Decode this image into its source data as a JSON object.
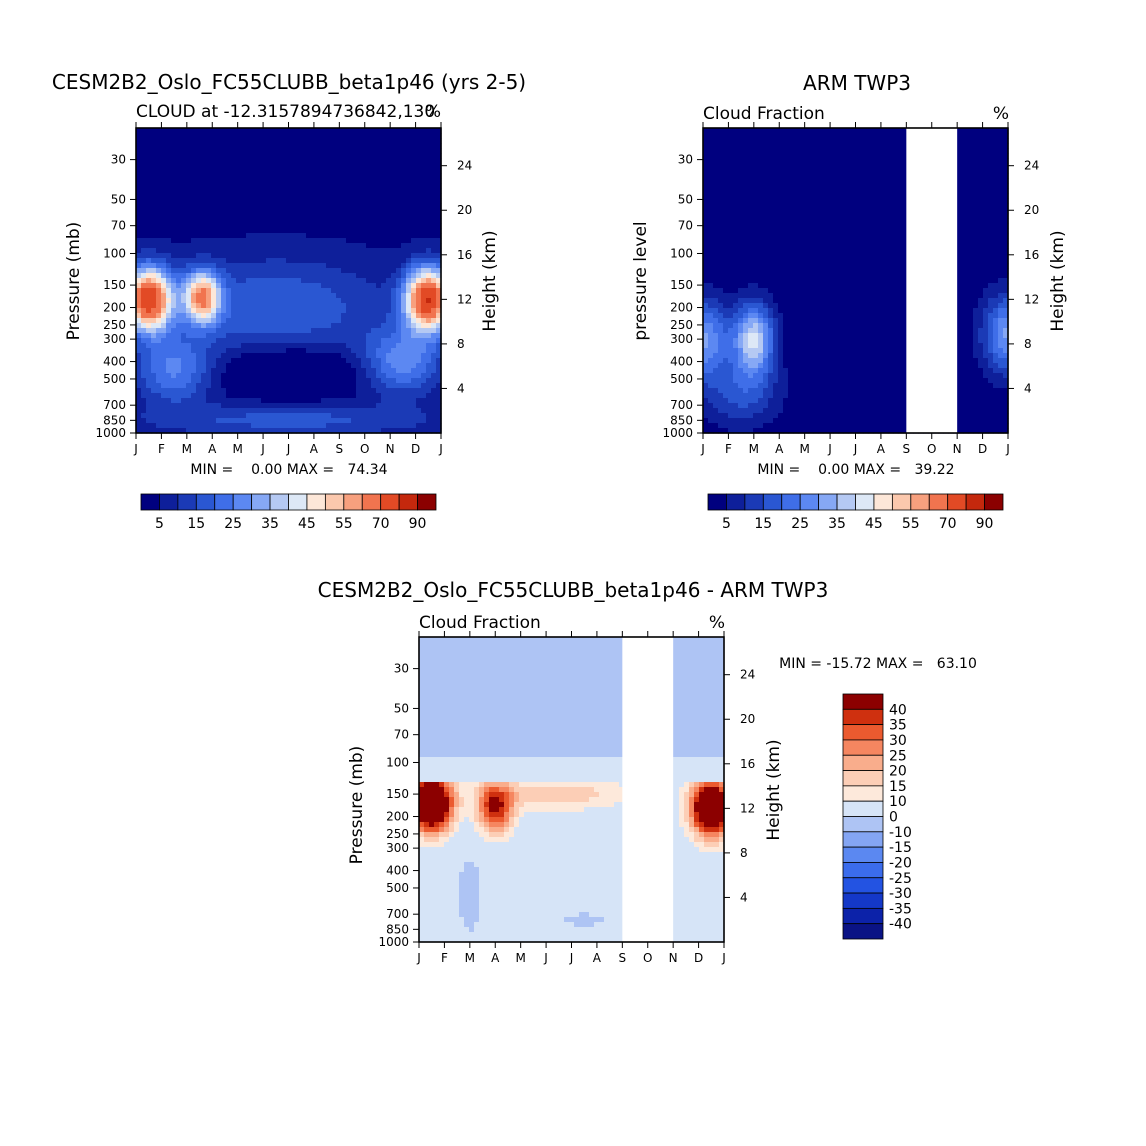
{
  "colors": {
    "seq": [
      "#00007f",
      "#0e1f9a",
      "#1b3ab6",
      "#2a57d2",
      "#3f6ee8",
      "#5c88f2",
      "#86a8f5",
      "#b5c9f3",
      "#dde8f6",
      "#fde7d8",
      "#fbc8ad",
      "#f7a07e",
      "#f1744f",
      "#e24a25",
      "#c4280d",
      "#8b0000"
    ],
    "div": [
      "#0a1385",
      "#0c22a9",
      "#1438c8",
      "#2353e2",
      "#3b6cec",
      "#5b88f1",
      "#84a5f3",
      "#aec4f4",
      "#d6e4f7",
      "#fde9db",
      "#fcceb6",
      "#f9ad8c",
      "#f58660",
      "#eb5a2f",
      "#cf300f",
      "#8c0000"
    ]
  },
  "chart_data": [
    {
      "type": "heatmap",
      "title": "CESM2B2_Oslo_FC55CLUBB_beta1p46 (yrs 2-5)",
      "subtitle_left": "CLOUD at -12.3157894736842,130",
      "subtitle_right": "%",
      "xlabels": [
        "J",
        "F",
        "M",
        "A",
        "M",
        "J",
        "J",
        "A",
        "S",
        "O",
        "N",
        "D",
        "J"
      ],
      "ylabel": "Pressure (mb)",
      "yticks": [
        "30",
        "50",
        "70",
        "100",
        "150",
        "200",
        "250",
        "300",
        "400",
        "500",
        "700",
        "850",
        "1000"
      ],
      "ylabel_right": "Height (km)",
      "yticks_right": [
        "24",
        "20",
        "16",
        "12",
        "8",
        "4"
      ],
      "stats": "MIN =    0.00 MAX =   74.34",
      "colorbar_labels": [
        "5",
        "15",
        "25",
        "35",
        "45",
        "55",
        "70",
        "90"
      ],
      "features": [
        {
          "month": 0.5,
          "pressure": 180,
          "value": 72,
          "month_spread": 0.9,
          "height_spread": 2.8
        },
        {
          "month": 2.6,
          "pressure": 175,
          "value": 52,
          "month_spread": 0.7,
          "height_spread": 2.3
        },
        {
          "month": 11.5,
          "pressure": 180,
          "value": 74,
          "month_spread": 0.9,
          "height_spread": 2.8
        },
        {
          "month": 5.5,
          "pressure": 200,
          "value": 17,
          "month_spread": 4.5,
          "height_spread": 4.5
        },
        {
          "month": 1.5,
          "pressure": 450,
          "value": 22,
          "month_spread": 1.5,
          "height_spread": 3
        },
        {
          "month": 10.5,
          "pressure": 400,
          "value": 24,
          "month_spread": 1.5,
          "height_spread": 3
        },
        {
          "month": 6.0,
          "pressure": 850,
          "value": 14,
          "month_spread": 6,
          "height_spread": 1.5
        },
        {
          "month": 6.0,
          "pressure": 450,
          "value": -14,
          "month_spread": 2.5,
          "height_spread": 2
        }
      ]
    },
    {
      "type": "heatmap",
      "title": "ARM TWP3",
      "subtitle_left": "Cloud Fraction",
      "subtitle_right": "%",
      "xlabels": [
        "J",
        "F",
        "M",
        "A",
        "M",
        "J",
        "J",
        "A",
        "S",
        "O",
        "N",
        "D",
        "J"
      ],
      "ylabel": "pressure level",
      "yticks": [
        "30",
        "50",
        "70",
        "100",
        "150",
        "200",
        "250",
        "300",
        "400",
        "500",
        "700",
        "850",
        "1000"
      ],
      "ylabel_right": "Height (km)",
      "yticks_right": [
        "24",
        "20",
        "16",
        "12",
        "8",
        "4"
      ],
      "stats": "MIN =    0.00 MAX =   39.22",
      "colorbar_labels": [
        "5",
        "15",
        "25",
        "35",
        "45",
        "55",
        "70",
        "90"
      ],
      "missing_months": [
        8,
        10
      ],
      "features": [
        {
          "month": 0.0,
          "pressure": 300,
          "value": 30,
          "month_spread": 1.0,
          "height_spread": 3.5
        },
        {
          "month": 2.0,
          "pressure": 300,
          "value": 39,
          "month_spread": 0.8,
          "height_spread": 3.2
        },
        {
          "month": 12.0,
          "pressure": 280,
          "value": 30,
          "month_spread": 1.0,
          "height_spread": 3.5
        },
        {
          "month": 1.5,
          "pressure": 600,
          "value": 15,
          "month_spread": 1.5,
          "height_spread": 3
        }
      ]
    },
    {
      "type": "heatmap",
      "title": "CESM2B2_Oslo_FC55CLUBB_beta1p46 - ARM TWP3",
      "subtitle_left": "Cloud Fraction",
      "subtitle_right": "%",
      "xlabels": [
        "J",
        "F",
        "M",
        "A",
        "M",
        "J",
        "J",
        "A",
        "S",
        "O",
        "N",
        "D",
        "J"
      ],
      "ylabel": "Pressure (mb)",
      "yticks": [
        "30",
        "50",
        "70",
        "100",
        "150",
        "200",
        "250",
        "300",
        "400",
        "500",
        "700",
        "850",
        "1000"
      ],
      "ylabel_right": "Height (km)",
      "yticks_right": [
        "24",
        "20",
        "16",
        "12",
        "8",
        "4"
      ],
      "stats": "MIN = -15.72 MAX =   63.10",
      "colorbar_labels": [
        "40",
        "35",
        "30",
        "25",
        "20",
        "15",
        "10",
        "0",
        "-10",
        "-15",
        "-20",
        "-25",
        "-30",
        "-35",
        "-40"
      ],
      "missing_months": [
        8,
        10
      ],
      "features": [
        {
          "month": 0.5,
          "pressure": 170,
          "value": 63,
          "month_spread": 0.8,
          "height_spread": 2.5
        },
        {
          "month": 3.0,
          "pressure": 180,
          "value": 35,
          "month_spread": 0.7,
          "height_spread": 2.3
        },
        {
          "month": 11.5,
          "pressure": 180,
          "value": 60,
          "month_spread": 0.8,
          "height_spread": 2.5
        },
        {
          "month": 5.5,
          "pressure": 150,
          "value": 13,
          "month_spread": 3,
          "height_spread": 1.5
        },
        {
          "month": 2.0,
          "pressure": 550,
          "value": -15,
          "month_spread": 0.4,
          "height_spread": 3
        },
        {
          "month": 6.5,
          "pressure": 750,
          "value": -8,
          "month_spread": 1.2,
          "height_spread": 0.7
        }
      ]
    }
  ]
}
